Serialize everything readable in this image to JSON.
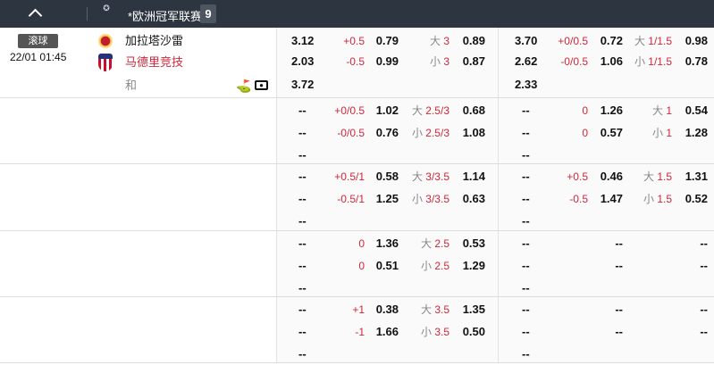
{
  "header": {
    "league": "*欧洲冠军联赛",
    "count": "9",
    "logo_text": "UEFA Champions League"
  },
  "match": {
    "status": "滚球",
    "time": "22/01 01:45",
    "home": "加拉塔沙雷",
    "away": "马德里竞技",
    "draw": "和",
    "icons": [
      "corner-flag-icon",
      "live-video-icon"
    ]
  },
  "colors": {
    "header": "#2d3540",
    "red": "#d0273a"
  },
  "blocks": [
    {
      "ft": {
        "x12": [
          "3.12",
          "2.03",
          "3.72"
        ],
        "hc": [
          [
            "+0.5",
            "0.79"
          ],
          [
            "-0.5",
            "0.99"
          ]
        ],
        "ou": [
          [
            "大",
            "3",
            "0.89"
          ],
          [
            "小",
            "3",
            "0.87"
          ]
        ]
      },
      "ht": {
        "x12": [
          "3.70",
          "2.62",
          "2.33"
        ],
        "hc": [
          [
            "+0/0.5",
            "0.72"
          ],
          [
            "-0/0.5",
            "1.06"
          ]
        ],
        "ou": [
          [
            "大",
            "1/1.5",
            "0.98"
          ],
          [
            "小",
            "1/1.5",
            "0.78"
          ]
        ]
      }
    },
    {
      "ft": {
        "x12": [
          "--",
          "--",
          "--"
        ],
        "hc": [
          [
            "+0/0.5",
            "1.02"
          ],
          [
            "-0/0.5",
            "0.76"
          ]
        ],
        "ou": [
          [
            "大",
            "2.5/3",
            "0.68"
          ],
          [
            "小",
            "2.5/3",
            "1.08"
          ]
        ]
      },
      "ht": {
        "x12": [
          "--",
          "--",
          "--"
        ],
        "hc": [
          [
            "0",
            "1.26"
          ],
          [
            "0",
            "0.57"
          ]
        ],
        "ou": [
          [
            "大",
            "1",
            "0.54"
          ],
          [
            "小",
            "1",
            "1.28"
          ]
        ]
      }
    },
    {
      "ft": {
        "x12": [
          "--",
          "--",
          "--"
        ],
        "hc": [
          [
            "+0.5/1",
            "0.58"
          ],
          [
            "-0.5/1",
            "1.25"
          ]
        ],
        "ou": [
          [
            "大",
            "3/3.5",
            "1.14"
          ],
          [
            "小",
            "3/3.5",
            "0.63"
          ]
        ]
      },
      "ht": {
        "x12": [
          "--",
          "--",
          "--"
        ],
        "hc": [
          [
            "+0.5",
            "0.46"
          ],
          [
            "-0.5",
            "1.47"
          ]
        ],
        "ou": [
          [
            "大",
            "1.5",
            "1.31"
          ],
          [
            "小",
            "1.5",
            "0.52"
          ]
        ]
      }
    },
    {
      "ft": {
        "x12": [
          "--",
          "--",
          "--"
        ],
        "hc": [
          [
            "0",
            "1.36"
          ],
          [
            "0",
            "0.51"
          ]
        ],
        "ou": [
          [
            "大",
            "2.5",
            "0.53"
          ],
          [
            "小",
            "2.5",
            "1.29"
          ]
        ]
      },
      "ht": {
        "x12": [
          "--",
          "--",
          "--"
        ],
        "hc": [
          [
            "",
            "--"
          ],
          [
            "",
            "--"
          ]
        ],
        "ou": [
          [
            "",
            "",
            "--"
          ],
          [
            "",
            "",
            "--"
          ]
        ]
      }
    },
    {
      "ft": {
        "x12": [
          "--",
          "--",
          "--"
        ],
        "hc": [
          [
            "+1",
            "0.38"
          ],
          [
            "-1",
            "1.66"
          ]
        ],
        "ou": [
          [
            "大",
            "3.5",
            "1.35"
          ],
          [
            "小",
            "3.5",
            "0.50"
          ]
        ]
      },
      "ht": {
        "x12": [
          "--",
          "--",
          "--"
        ],
        "hc": [
          [
            "",
            "--"
          ],
          [
            "",
            "--"
          ]
        ],
        "ou": [
          [
            "",
            "",
            "--"
          ],
          [
            "",
            "",
            "--"
          ]
        ]
      }
    }
  ]
}
